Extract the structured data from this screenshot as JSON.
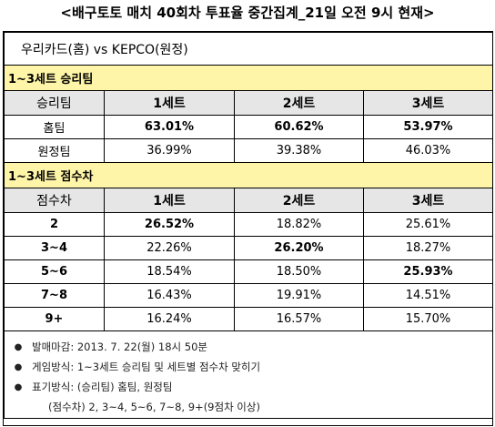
{
  "title": "<배구토토 매치 40회차 투표율 중간집계_21일 오전 9시 현재>",
  "match": "우리카드(홈) vs KEPCO(원정)",
  "section1": {
    "title": "1~3세트 승리팀",
    "headers": [
      "승리팀",
      "1세트",
      "2세트",
      "3세트"
    ],
    "rows": [
      {
        "label": "홈팀",
        "values": [
          "63.01%",
          "60.62%",
          "53.97%"
        ],
        "bold": [
          true,
          true,
          true
        ]
      },
      {
        "label": "원정팀",
        "values": [
          "36.99%",
          "39.38%",
          "46.03%"
        ],
        "bold": [
          false,
          false,
          false
        ]
      }
    ]
  },
  "section2": {
    "title": "1~3세트 점수차",
    "headers": [
      "점수차",
      "1세트",
      "2세트",
      "3세트"
    ],
    "rows": [
      {
        "label": "2",
        "values": [
          "26.52%",
          "18.82%",
          "25.61%"
        ],
        "bold": [
          true,
          false,
          false
        ]
      },
      {
        "label": "3~4",
        "values": [
          "22.26%",
          "26.20%",
          "18.27%"
        ],
        "bold": [
          false,
          true,
          false
        ]
      },
      {
        "label": "5~6",
        "values": [
          "18.54%",
          "18.50%",
          "25.93%"
        ],
        "bold": [
          false,
          false,
          true
        ]
      },
      {
        "label": "7~8",
        "values": [
          "16.43%",
          "19.91%",
          "14.51%"
        ],
        "bold": [
          false,
          false,
          false
        ]
      },
      {
        "label": "9+",
        "values": [
          "16.24%",
          "16.57%",
          "15.70%"
        ],
        "bold": [
          false,
          false,
          false
        ]
      }
    ]
  },
  "notes": {
    "bullet": "●",
    "deadline": "발매마감: 2013. 7. 22(월) 18시 50분",
    "method": "게임방식: 1~3세트 승리팀 및 세트별 점수차 맞히기",
    "display": "표기방식: (승리팀) 홈팀, 원정팀",
    "display2": "(점수차) 2, 3~4, 5~6, 7~8, 9+(9점차 이상)"
  }
}
